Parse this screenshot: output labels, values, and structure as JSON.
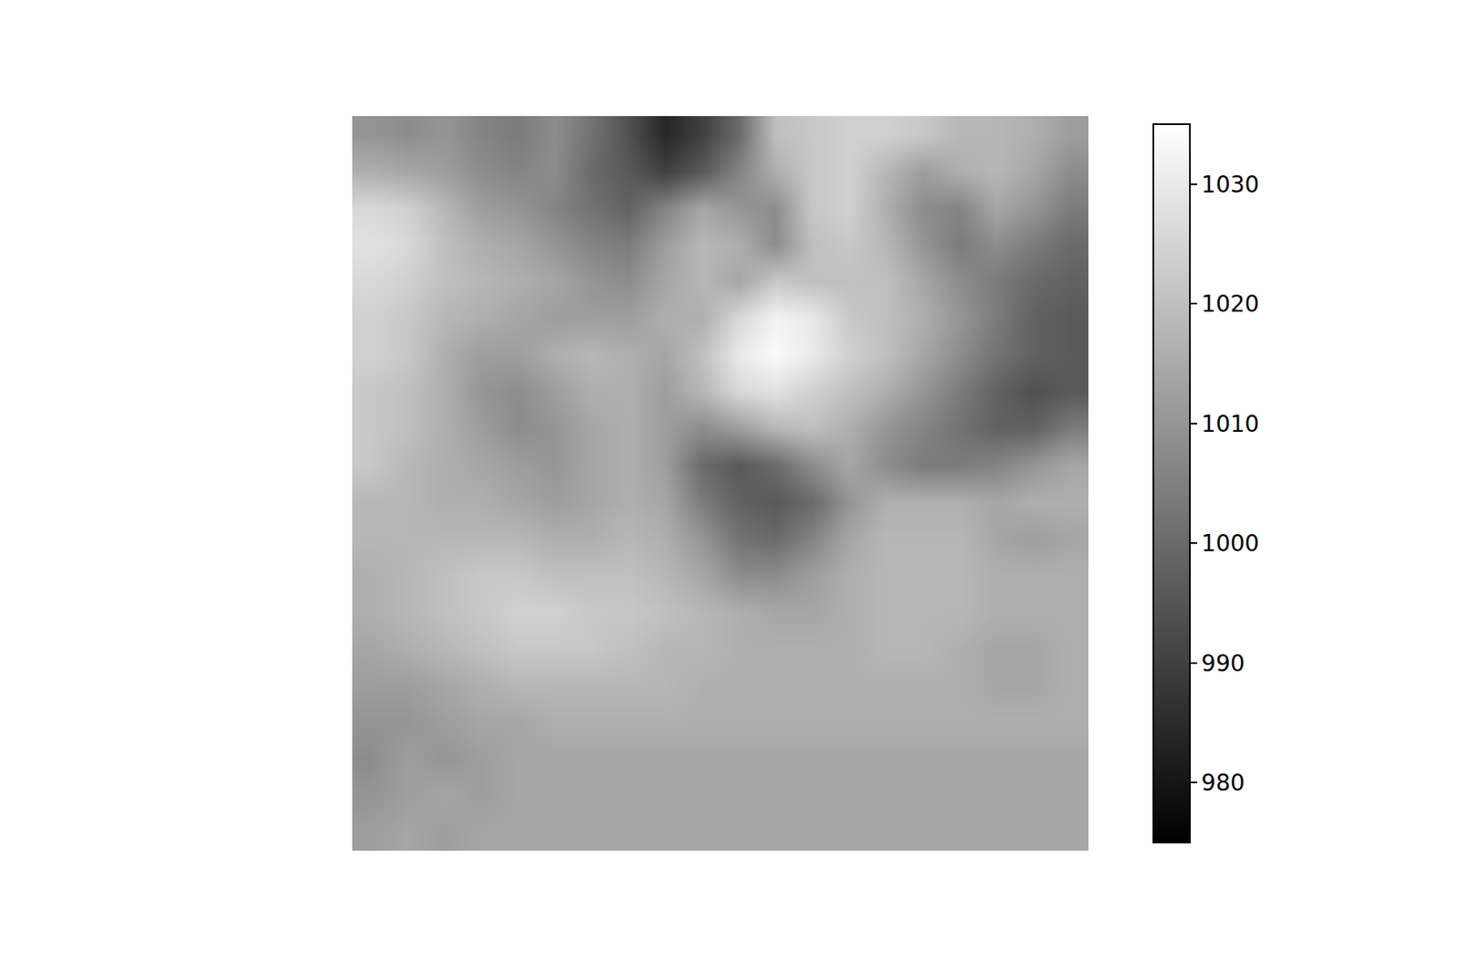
{
  "chart_data": {
    "type": "heatmap",
    "color": "gray",
    "tick_labels": false,
    "zlim": [
      975,
      1035
    ],
    "colorbar_ticks": [
      980,
      990,
      1000,
      1010,
      1020,
      1030
    ],
    "z": [
      [
        1010,
        1008,
        1010,
        1006,
        1004,
        1008,
        1002,
        994,
        984,
        990,
        1000,
        1020,
        1022,
        1024,
        1024,
        1022,
        1018,
        1018,
        1016,
        1012
      ],
      [
        1016,
        1014,
        1012,
        1008,
        1006,
        1008,
        1000,
        996,
        990,
        996,
        1006,
        1016,
        1022,
        1024,
        1018,
        1012,
        1016,
        1018,
        1014,
        1008
      ],
      [
        1026,
        1024,
        1018,
        1012,
        1010,
        1006,
        1002,
        998,
        1006,
        1014,
        1010,
        1008,
        1022,
        1024,
        1016,
        1008,
        1006,
        1014,
        1010,
        1004
      ],
      [
        1028,
        1026,
        1020,
        1016,
        1014,
        1010,
        1006,
        1004,
        1012,
        1018,
        1016,
        1008,
        1020,
        1022,
        1018,
        1010,
        1004,
        1008,
        1004,
        1000
      ],
      [
        1026,
        1024,
        1020,
        1018,
        1016,
        1014,
        1010,
        1008,
        1014,
        1018,
        1014,
        1022,
        1020,
        1020,
        1020,
        1014,
        1008,
        1004,
        1000,
        998
      ],
      [
        1024,
        1022,
        1018,
        1016,
        1014,
        1012,
        1012,
        1012,
        1016,
        1016,
        1026,
        1032,
        1030,
        1022,
        1020,
        1016,
        1010,
        1004,
        998,
        996
      ],
      [
        1024,
        1022,
        1016,
        1012,
        1012,
        1016,
        1018,
        1016,
        1014,
        1020,
        1030,
        1034,
        1030,
        1024,
        1020,
        1014,
        1008,
        1002,
        998,
        996
      ],
      [
        1022,
        1020,
        1016,
        1010,
        1008,
        1012,
        1016,
        1016,
        1012,
        1018,
        1026,
        1028,
        1024,
        1020,
        1016,
        1010,
        1004,
        998,
        994,
        996
      ],
      [
        1022,
        1020,
        1016,
        1012,
        1008,
        1010,
        1014,
        1016,
        1012,
        1008,
        1012,
        1018,
        1020,
        1016,
        1010,
        1006,
        1002,
        998,
        998,
        1004
      ],
      [
        1022,
        1018,
        1016,
        1014,
        1012,
        1010,
        1014,
        1016,
        1012,
        1000,
        996,
        1000,
        1008,
        1014,
        1008,
        1004,
        1004,
        1006,
        1010,
        1014
      ],
      [
        1018,
        1018,
        1016,
        1016,
        1014,
        1012,
        1014,
        1016,
        1014,
        1004,
        998,
        996,
        1000,
        1010,
        1016,
        1016,
        1016,
        1014,
        1016,
        1016
      ],
      [
        1018,
        1018,
        1018,
        1018,
        1018,
        1016,
        1016,
        1018,
        1016,
        1010,
        1002,
        1000,
        1006,
        1014,
        1018,
        1018,
        1018,
        1014,
        1012,
        1014
      ],
      [
        1016,
        1018,
        1020,
        1022,
        1022,
        1020,
        1020,
        1020,
        1018,
        1014,
        1008,
        1008,
        1012,
        1016,
        1018,
        1018,
        1018,
        1016,
        1016,
        1016
      ],
      [
        1016,
        1018,
        1020,
        1022,
        1024,
        1024,
        1022,
        1022,
        1020,
        1018,
        1016,
        1014,
        1014,
        1016,
        1018,
        1018,
        1018,
        1016,
        1016,
        1016
      ],
      [
        1014,
        1016,
        1018,
        1020,
        1022,
        1022,
        1022,
        1020,
        1018,
        1018,
        1016,
        1016,
        1016,
        1016,
        1018,
        1018,
        1016,
        1014,
        1014,
        1016
      ],
      [
        1012,
        1012,
        1014,
        1016,
        1018,
        1018,
        1018,
        1018,
        1018,
        1016,
        1016,
        1016,
        1016,
        1016,
        1016,
        1016,
        1016,
        1014,
        1014,
        1016
      ],
      [
        1010,
        1010,
        1012,
        1014,
        1014,
        1016,
        1016,
        1016,
        1016,
        1016,
        1016,
        1016,
        1016,
        1016,
        1016,
        1016,
        1016,
        1016,
        1016,
        1016
      ],
      [
        1008,
        1012,
        1010,
        1012,
        1014,
        1014,
        1014,
        1014,
        1014,
        1014,
        1014,
        1014,
        1014,
        1014,
        1014,
        1014,
        1014,
        1014,
        1014,
        1014
      ],
      [
        1010,
        1012,
        1014,
        1012,
        1014,
        1014,
        1014,
        1014,
        1014,
        1014,
        1014,
        1014,
        1014,
        1014,
        1014,
        1014,
        1014,
        1014,
        1014,
        1014
      ],
      [
        1012,
        1014,
        1012,
        1014,
        1014,
        1014,
        1014,
        1014,
        1014,
        1014,
        1014,
        1014,
        1014,
        1014,
        1014,
        1014,
        1014,
        1014,
        1014,
        1014
      ]
    ]
  }
}
